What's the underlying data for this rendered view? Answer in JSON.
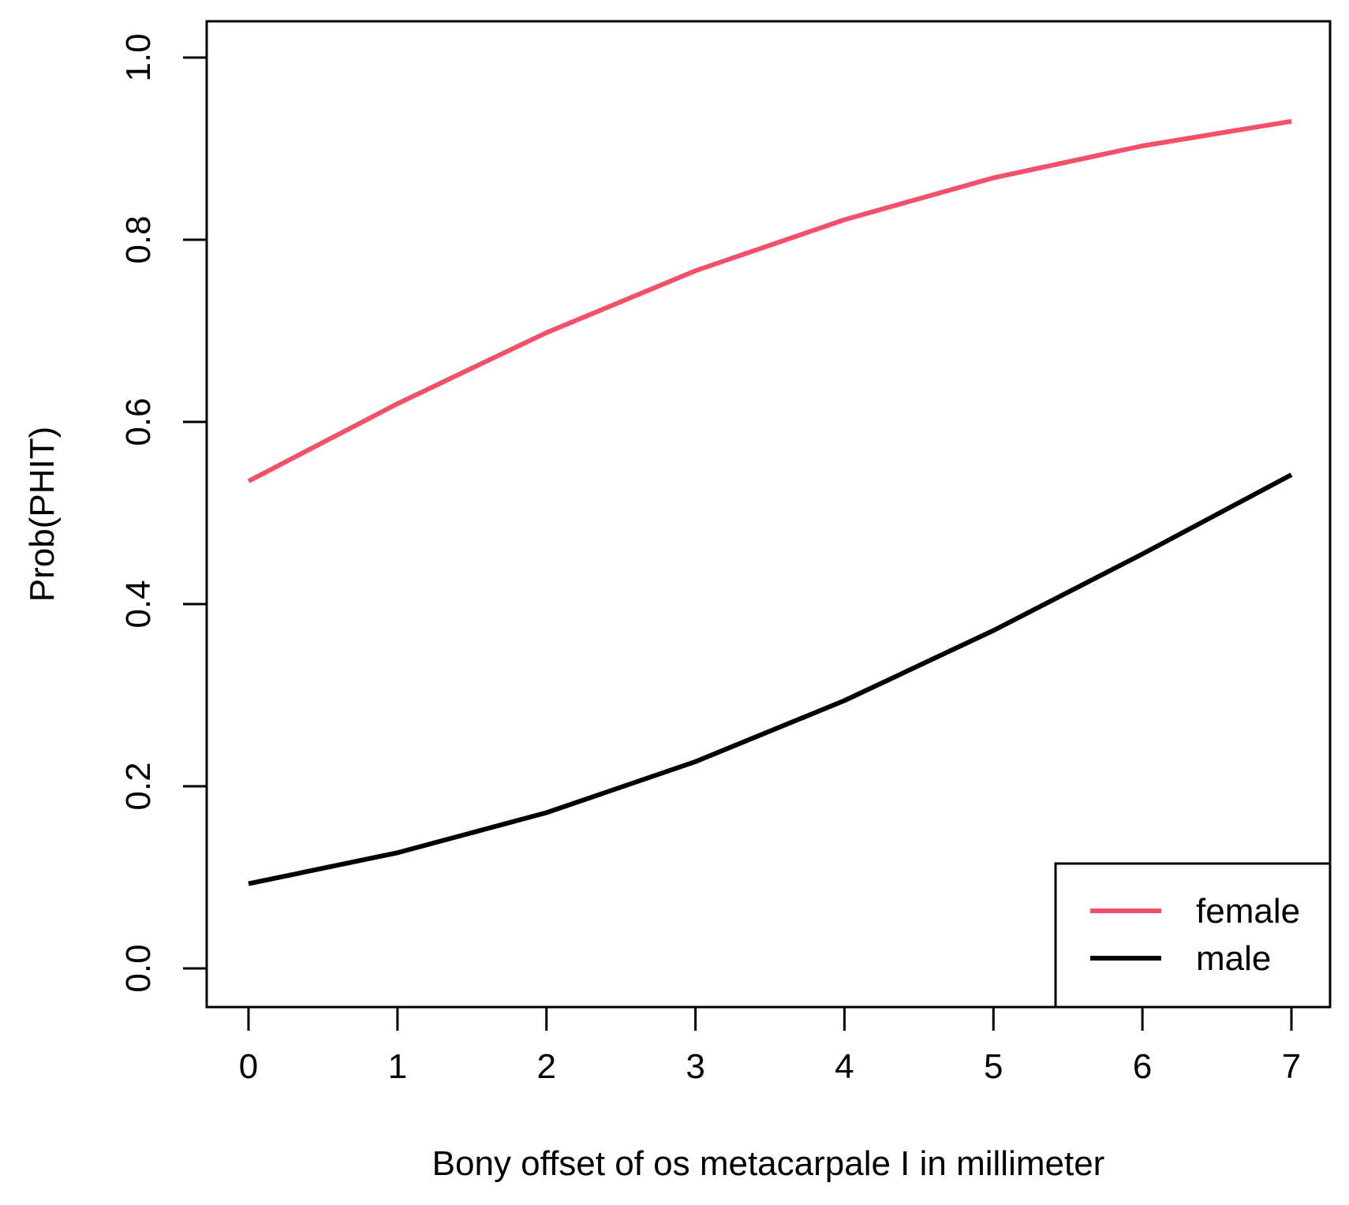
{
  "chart_data": {
    "type": "line",
    "title": "",
    "xlabel": "Bony offset of os metacarpale I in millimeter",
    "ylabel": "Prob(PHIT)",
    "x": [
      0,
      1,
      2,
      3,
      4,
      5,
      6,
      7
    ],
    "xlim": [
      0,
      7
    ],
    "ylim": [
      0,
      1
    ],
    "xticks": [
      0,
      1,
      2,
      3,
      4,
      5,
      6,
      7
    ],
    "xtick_labels": [
      "0",
      "1",
      "2",
      "3",
      "4",
      "5",
      "6",
      "7"
    ],
    "yticks": [
      0,
      0.2,
      0.4,
      0.6,
      0.8,
      1.0
    ],
    "ytick_labels": [
      "0.0",
      "0.2",
      "0.4",
      "0.6",
      "0.8",
      "1.0"
    ],
    "grid": false,
    "legend_position": "bottom-right",
    "series": [
      {
        "name": "female",
        "color": "#F5506A",
        "values": [
          0.535,
          0.62,
          0.698,
          0.766,
          0.822,
          0.868,
          0.903,
          0.93
        ]
      },
      {
        "name": "male",
        "color": "#000000",
        "values": [
          0.093,
          0.127,
          0.171,
          0.227,
          0.294,
          0.371,
          0.455,
          0.542
        ]
      }
    ]
  }
}
